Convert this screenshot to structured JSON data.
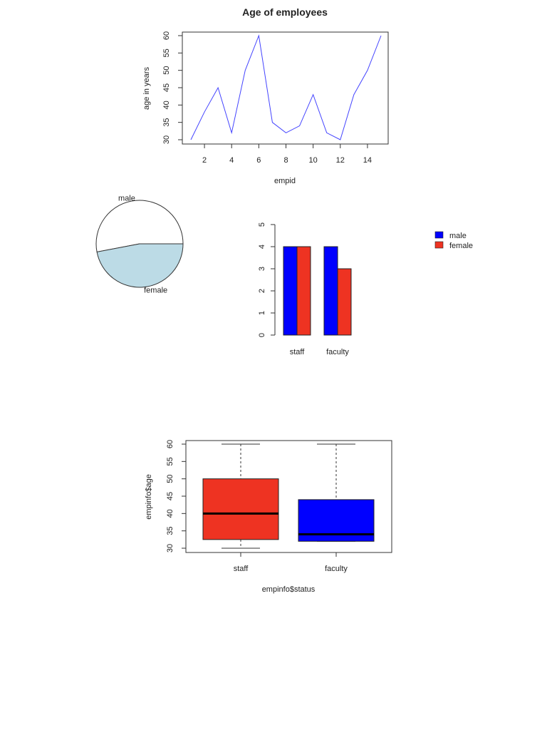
{
  "chart_data": [
    {
      "type": "line",
      "title": "Age of employees",
      "xlabel": "empid",
      "ylabel": "age in years",
      "x": [
        1,
        2,
        3,
        4,
        5,
        6,
        7,
        8,
        9,
        10,
        11,
        12,
        13,
        14,
        15
      ],
      "y": [
        30,
        38,
        45,
        32,
        50,
        60,
        35,
        32,
        34,
        43,
        32,
        30,
        43,
        50,
        60
      ],
      "xticks": [
        2,
        4,
        6,
        8,
        10,
        12,
        14
      ],
      "yticks": [
        30,
        35,
        40,
        45,
        50,
        55,
        60
      ],
      "xlim": [
        1,
        15
      ],
      "ylim": [
        30,
        60
      ],
      "color": "#4444ff",
      "grid": false
    },
    {
      "type": "pie",
      "labels": [
        "male",
        "female"
      ],
      "values": [
        53,
        47
      ],
      "colors": [
        "#ffffff",
        "#bcdbe6"
      ]
    },
    {
      "type": "bar",
      "categories": [
        "staff",
        "faculty"
      ],
      "series": [
        {
          "name": "male",
          "values": [
            4,
            4
          ],
          "color": "#0000ff"
        },
        {
          "name": "female",
          "values": [
            4,
            3
          ],
          "color": "#ee3322"
        }
      ],
      "yticks": [
        0,
        1,
        2,
        3,
        4,
        5
      ],
      "ylim": [
        0,
        5
      ],
      "legend": "top-right",
      "grid": false
    },
    {
      "type": "box",
      "xlabel": "empinfo$status",
      "ylabel": "empinfo$age",
      "categories": [
        "staff",
        "faculty"
      ],
      "boxes": [
        {
          "min": 30,
          "q1": 32.5,
          "median": 40,
          "q3": 50,
          "max": 60,
          "color": "#ee3322"
        },
        {
          "min": 32,
          "q1": 32,
          "median": 34,
          "q3": 44,
          "max": 60,
          "color": "#0000ff"
        }
      ],
      "yticks": [
        30,
        35,
        40,
        45,
        50,
        55,
        60
      ],
      "ylim": [
        30,
        60
      ],
      "grid": false
    }
  ]
}
